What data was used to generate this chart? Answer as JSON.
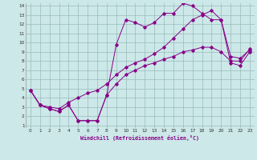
{
  "xlabel": "Windchill (Refroidissement éolien,°C)",
  "bg_color": "#cce8e8",
  "grid_color": "#99bbbb",
  "line_color": "#880088",
  "xlim": [
    0,
    23
  ],
  "ylim": [
    1,
    14
  ],
  "xticks": [
    0,
    1,
    2,
    3,
    4,
    5,
    6,
    7,
    8,
    9,
    10,
    11,
    12,
    13,
    14,
    15,
    16,
    17,
    18,
    19,
    20,
    21,
    22,
    23
  ],
  "yticks": [
    1,
    2,
    3,
    4,
    5,
    6,
    7,
    8,
    9,
    10,
    11,
    12,
    13,
    14
  ],
  "line1_x": [
    0,
    1,
    2,
    3,
    4,
    5,
    6,
    7,
    8,
    9,
    10,
    11,
    12,
    13,
    14,
    15,
    16,
    17,
    18,
    19,
    20,
    21,
    22,
    23
  ],
  "line1_y": [
    4.8,
    3.2,
    2.8,
    2.5,
    3.2,
    1.5,
    1.5,
    1.5,
    4.3,
    5.5,
    6.5,
    7.0,
    7.5,
    7.8,
    8.2,
    8.5,
    9.0,
    9.2,
    9.5,
    9.5,
    9.0,
    8.0,
    8.0,
    9.3
  ],
  "line2_x": [
    0,
    1,
    2,
    3,
    4,
    5,
    6,
    7,
    8,
    9,
    10,
    11,
    12,
    13,
    14,
    15,
    16,
    17,
    18,
    19,
    20,
    21,
    22,
    23
  ],
  "line2_y": [
    4.8,
    3.2,
    2.8,
    2.5,
    3.2,
    1.5,
    1.5,
    1.5,
    4.3,
    9.8,
    12.5,
    12.2,
    11.7,
    12.2,
    13.2,
    13.2,
    14.3,
    14.0,
    13.2,
    12.5,
    12.5,
    7.8,
    7.5,
    9.0
  ],
  "line3_x": [
    0,
    1,
    2,
    3,
    4,
    5,
    6,
    7,
    8,
    9,
    10,
    11,
    12,
    13,
    14,
    15,
    16,
    17,
    18,
    19,
    20,
    21,
    22,
    23
  ],
  "line3_y": [
    4.8,
    3.2,
    3.0,
    2.8,
    3.5,
    4.0,
    4.5,
    4.8,
    5.5,
    6.5,
    7.3,
    7.8,
    8.2,
    8.8,
    9.5,
    10.5,
    11.5,
    12.5,
    13.0,
    13.5,
    12.5,
    8.5,
    8.3,
    9.2
  ]
}
